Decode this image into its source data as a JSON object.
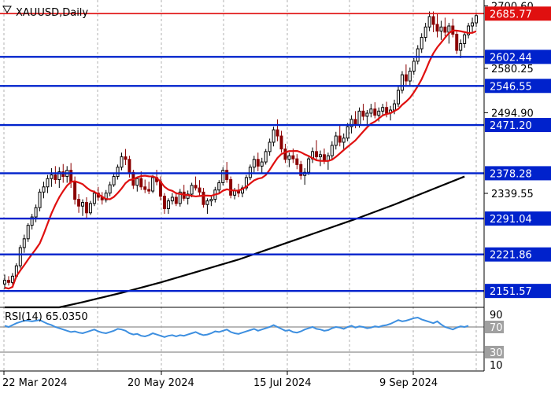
{
  "chart_data": {
    "type": "candlestick",
    "title": "XAUUSD,Daily",
    "x_tick_labels": [
      "22 Mar 2024",
      "20 May 2024",
      "15 Jul 2024",
      "9 Sep 2024"
    ],
    "y_ticks": [
      "2700.60",
      "2580.25",
      "2494.90",
      "2339.55"
    ],
    "ylim": [
      2120,
      2712
    ],
    "grid": true,
    "colors": {
      "bull": "#000000",
      "bear": "#8b0000",
      "fast_ma": "#e01010",
      "slow_ma": "#000000",
      "support_line": "#0022cc",
      "top_line": "#e01010",
      "rsi": "#3d8fe0",
      "level_tag": "#0022cc",
      "top_tag": "#e01010"
    },
    "levels": [
      {
        "label": "2685.77",
        "value": 2685.77,
        "kind": "resistance"
      },
      {
        "label": "2602.44",
        "value": 2602.44,
        "kind": "support"
      },
      {
        "label": "2546.55",
        "value": 2546.55,
        "kind": "support"
      },
      {
        "label": "2471.20",
        "value": 2471.2,
        "kind": "support"
      },
      {
        "label": "2378.28",
        "value": 2378.28,
        "kind": "support"
      },
      {
        "label": "2291.04",
        "value": 2291.04,
        "kind": "support"
      },
      {
        "label": "2221.86",
        "value": 2221.86,
        "kind": "support"
      },
      {
        "label": "2151.57",
        "value": 2151.57,
        "kind": "support"
      }
    ],
    "candles": [
      [
        2165,
        2183,
        2155,
        2172
      ],
      [
        2172,
        2180,
        2162,
        2168
      ],
      [
        2168,
        2186,
        2164,
        2180
      ],
      [
        2180,
        2205,
        2176,
        2200
      ],
      [
        2200,
        2240,
        2195,
        2235
      ],
      [
        2235,
        2260,
        2225,
        2252
      ],
      [
        2252,
        2282,
        2246,
        2278
      ],
      [
        2278,
        2300,
        2270,
        2294
      ],
      [
        2294,
        2318,
        2284,
        2312
      ],
      [
        2312,
        2348,
        2305,
        2342
      ],
      [
        2342,
        2362,
        2330,
        2352
      ],
      [
        2352,
        2375,
        2340,
        2368
      ],
      [
        2368,
        2388,
        2352,
        2375
      ],
      [
        2375,
        2392,
        2358,
        2366
      ],
      [
        2366,
        2390,
        2350,
        2381
      ],
      [
        2381,
        2396,
        2360,
        2372
      ],
      [
        2372,
        2392,
        2360,
        2384
      ],
      [
        2384,
        2398,
        2350,
        2362
      ],
      [
        2362,
        2372,
        2318,
        2328
      ],
      [
        2328,
        2338,
        2302,
        2315
      ],
      [
        2315,
        2328,
        2296,
        2322
      ],
      [
        2322,
        2332,
        2292,
        2302
      ],
      [
        2302,
        2325,
        2298,
        2320
      ],
      [
        2320,
        2345,
        2315,
        2340
      ],
      [
        2340,
        2352,
        2325,
        2332
      ],
      [
        2332,
        2342,
        2318,
        2327
      ],
      [
        2327,
        2346,
        2322,
        2340
      ],
      [
        2340,
        2362,
        2334,
        2356
      ],
      [
        2356,
        2378,
        2352,
        2372
      ],
      [
        2372,
        2395,
        2366,
        2390
      ],
      [
        2390,
        2418,
        2384,
        2410
      ],
      [
        2410,
        2425,
        2394,
        2405
      ],
      [
        2405,
        2412,
        2370,
        2380
      ],
      [
        2380,
        2385,
        2348,
        2355
      ],
      [
        2355,
        2372,
        2343,
        2368
      ],
      [
        2368,
        2382,
        2346,
        2352
      ],
      [
        2352,
        2366,
        2340,
        2347
      ],
      [
        2347,
        2362,
        2338,
        2344
      ],
      [
        2344,
        2375,
        2340,
        2370
      ],
      [
        2370,
        2385,
        2355,
        2362
      ],
      [
        2362,
        2372,
        2326,
        2334
      ],
      [
        2334,
        2340,
        2300,
        2310
      ],
      [
        2310,
        2330,
        2300,
        2325
      ],
      [
        2325,
        2340,
        2318,
        2332
      ],
      [
        2332,
        2342,
        2315,
        2320
      ],
      [
        2320,
        2348,
        2314,
        2342
      ],
      [
        2342,
        2356,
        2325,
        2330
      ],
      [
        2330,
        2345,
        2318,
        2338
      ],
      [
        2338,
        2360,
        2332,
        2355
      ],
      [
        2355,
        2372,
        2345,
        2350
      ],
      [
        2350,
        2365,
        2335,
        2342
      ],
      [
        2342,
        2350,
        2312,
        2318
      ],
      [
        2318,
        2330,
        2300,
        2325
      ],
      [
        2325,
        2336,
        2315,
        2328
      ],
      [
        2328,
        2352,
        2322,
        2346
      ],
      [
        2346,
        2365,
        2338,
        2360
      ],
      [
        2360,
        2390,
        2355,
        2384
      ],
      [
        2384,
        2400,
        2360,
        2366
      ],
      [
        2366,
        2372,
        2330,
        2336
      ],
      [
        2336,
        2350,
        2328,
        2345
      ],
      [
        2345,
        2358,
        2332,
        2340
      ],
      [
        2340,
        2355,
        2332,
        2350
      ],
      [
        2350,
        2375,
        2345,
        2370
      ],
      [
        2370,
        2395,
        2365,
        2390
      ],
      [
        2390,
        2412,
        2380,
        2405
      ],
      [
        2405,
        2418,
        2382,
        2392
      ],
      [
        2392,
        2408,
        2378,
        2400
      ],
      [
        2400,
        2425,
        2395,
        2420
      ],
      [
        2420,
        2445,
        2412,
        2438
      ],
      [
        2438,
        2468,
        2430,
        2462
      ],
      [
        2462,
        2482,
        2440,
        2450
      ],
      [
        2450,
        2460,
        2418,
        2425
      ],
      [
        2425,
        2435,
        2398,
        2405
      ],
      [
        2405,
        2418,
        2390,
        2412
      ],
      [
        2412,
        2426,
        2398,
        2406
      ],
      [
        2406,
        2415,
        2386,
        2395
      ],
      [
        2395,
        2402,
        2366,
        2374
      ],
      [
        2374,
        2388,
        2356,
        2380
      ],
      [
        2380,
        2412,
        2375,
        2406
      ],
      [
        2406,
        2428,
        2398,
        2420
      ],
      [
        2420,
        2442,
        2402,
        2410
      ],
      [
        2410,
        2422,
        2392,
        2414
      ],
      [
        2414,
        2426,
        2396,
        2402
      ],
      [
        2402,
        2418,
        2385,
        2412
      ],
      [
        2412,
        2440,
        2406,
        2432
      ],
      [
        2432,
        2458,
        2424,
        2450
      ],
      [
        2450,
        2472,
        2430,
        2438
      ],
      [
        2438,
        2455,
        2425,
        2446
      ],
      [
        2446,
        2475,
        2440,
        2468
      ],
      [
        2468,
        2490,
        2455,
        2482
      ],
      [
        2482,
        2498,
        2465,
        2472
      ],
      [
        2472,
        2505,
        2466,
        2498
      ],
      [
        2498,
        2512,
        2480,
        2488
      ],
      [
        2488,
        2500,
        2470,
        2494
      ],
      [
        2494,
        2512,
        2486,
        2502
      ],
      [
        2502,
        2515,
        2484,
        2490
      ],
      [
        2490,
        2505,
        2478,
        2498
      ],
      [
        2498,
        2512,
        2488,
        2505
      ],
      [
        2505,
        2516,
        2486,
        2494
      ],
      [
        2494,
        2508,
        2480,
        2500
      ],
      [
        2500,
        2520,
        2492,
        2512
      ],
      [
        2512,
        2545,
        2506,
        2538
      ],
      [
        2538,
        2575,
        2532,
        2568
      ],
      [
        2568,
        2588,
        2548,
        2556
      ],
      [
        2556,
        2582,
        2546,
        2575
      ],
      [
        2575,
        2600,
        2568,
        2594
      ],
      [
        2594,
        2625,
        2588,
        2618
      ],
      [
        2618,
        2648,
        2610,
        2640
      ],
      [
        2640,
        2668,
        2632,
        2660
      ],
      [
        2660,
        2690,
        2652,
        2680
      ],
      [
        2680,
        2690,
        2650,
        2665
      ],
      [
        2665,
        2686,
        2640,
        2652
      ],
      [
        2652,
        2672,
        2635,
        2660
      ],
      [
        2660,
        2678,
        2642,
        2650
      ],
      [
        2650,
        2668,
        2628,
        2662
      ],
      [
        2662,
        2676,
        2640,
        2646
      ],
      [
        2646,
        2652,
        2608,
        2615
      ],
      [
        2615,
        2636,
        2600,
        2628
      ],
      [
        2628,
        2650,
        2620,
        2645
      ],
      [
        2645,
        2668,
        2638,
        2662
      ],
      [
        2662,
        2678,
        2650,
        2668
      ],
      [
        2668,
        2688,
        2660,
        2682
      ]
    ],
    "fast_ma_name": "",
    "slow_ma_name": "",
    "slow_ma": [
      [
        0,
        2120
      ],
      [
        14,
        2120
      ],
      [
        20,
        2130
      ],
      [
        30,
        2148
      ],
      [
        40,
        2168
      ],
      [
        50,
        2190
      ],
      [
        60,
        2212
      ],
      [
        70,
        2238
      ],
      [
        80,
        2264
      ],
      [
        90,
        2290
      ],
      [
        100,
        2318
      ],
      [
        110,
        2348
      ],
      [
        118,
        2372
      ]
    ],
    "rsi": {
      "title": "RSI(14) 65.0350",
      "ticks": [
        "90",
        "70",
        "30",
        "10"
      ],
      "levels": [
        70,
        30
      ],
      "ylim": [
        0,
        100
      ],
      "values": [
        72,
        70,
        73,
        76,
        78,
        80,
        80,
        79,
        80,
        81,
        78,
        75,
        73,
        70,
        68,
        66,
        64,
        62,
        63,
        61,
        60,
        62,
        64,
        66,
        63,
        61,
        60,
        62,
        64,
        67,
        66,
        64,
        60,
        58,
        59,
        56,
        55,
        57,
        60,
        58,
        56,
        54,
        56,
        57,
        55,
        57,
        56,
        58,
        60,
        62,
        59,
        57,
        58,
        60,
        63,
        62,
        64,
        66,
        62,
        60,
        59,
        61,
        63,
        65,
        67,
        64,
        66,
        68,
        70,
        73,
        70,
        67,
        64,
        65,
        62,
        61,
        63,
        66,
        68,
        70,
        67,
        66,
        64,
        65,
        68,
        70,
        69,
        67,
        70,
        72,
        69,
        71,
        70,
        68,
        69,
        71,
        70,
        72,
        73,
        75,
        78,
        81,
        79,
        80,
        82,
        84,
        85,
        82,
        80,
        78,
        76,
        79,
        74,
        70,
        68,
        66,
        69,
        71,
        70,
        72
      ]
    }
  }
}
